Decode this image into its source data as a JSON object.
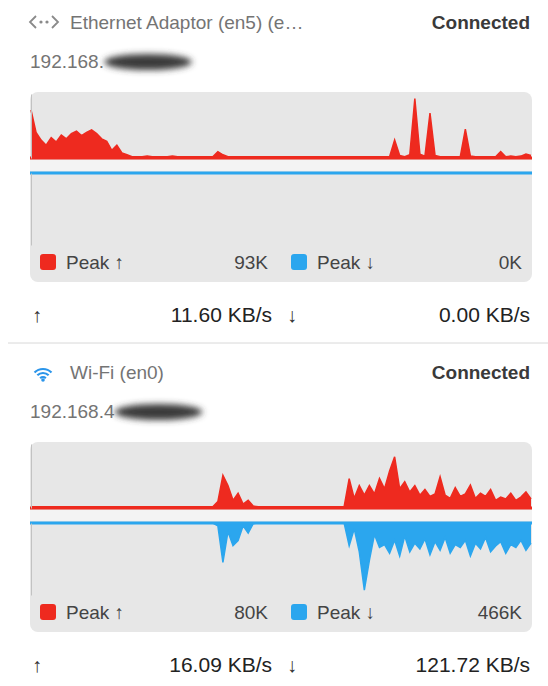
{
  "arrows": {
    "up": "↑",
    "down": "↓"
  },
  "panels": [
    {
      "name": "Ethernet Adaptor (en5) (e…",
      "status": "Connected",
      "ip": "192.168.",
      "peak_up": "93K",
      "peak_down": "0K",
      "rate_up": "11.60 KB/s",
      "rate_down": "0.00 KB/s"
    },
    {
      "name": "Wi-Fi (en0)",
      "status": "Connected",
      "ip": "192.168.4",
      "peak_up": "80K",
      "peak_down": "466K",
      "rate_up": "16.09 KB/s",
      "rate_down": "121.72 KB/s"
    }
  ],
  "chart_data": [
    {
      "type": "area",
      "categories": [
        null,
        null,
        null,
        null,
        null,
        null,
        null,
        null,
        null,
        null,
        null,
        null,
        null,
        null,
        null,
        null,
        null,
        null,
        null,
        null,
        null,
        null,
        null,
        null,
        null,
        null,
        null,
        null,
        null,
        null,
        null,
        null,
        null,
        null,
        null,
        null,
        null,
        null,
        null,
        null,
        null,
        null,
        null,
        null,
        null,
        null,
        null,
        null,
        null,
        null,
        null,
        null,
        null,
        null,
        null,
        null,
        null,
        null,
        null,
        null,
        null,
        null,
        null,
        null,
        null,
        null,
        null,
        null,
        null,
        null,
        null,
        null,
        null,
        null,
        null,
        null,
        null,
        null,
        null,
        null,
        null,
        null,
        null,
        null,
        null,
        null,
        null,
        null,
        null,
        null,
        null,
        null,
        null,
        null,
        null,
        null,
        null,
        null,
        null,
        null
      ],
      "series": [
        {
          "name": "Peak ↑",
          "color": "#ee2a1f",
          "values": [
            75,
            40,
            28,
            20,
            32,
            25,
            36,
            30,
            38,
            42,
            35,
            40,
            44,
            38,
            30,
            26,
            12,
            20,
            8,
            5,
            2,
            2,
            2,
            3,
            2,
            2,
            2,
            2,
            3,
            2,
            2,
            2,
            2,
            2,
            2,
            2,
            2,
            10,
            5,
            2,
            2,
            2,
            2,
            2,
            2,
            2,
            2,
            2,
            2,
            2,
            2,
            2,
            2,
            2,
            2,
            2,
            2,
            2,
            2,
            2,
            2,
            2,
            2,
            2,
            2,
            2,
            2,
            2,
            2,
            2,
            2,
            2,
            28,
            4,
            2,
            5,
            93,
            6,
            3,
            70,
            4,
            2,
            2,
            2,
            2,
            2,
            45,
            3,
            2,
            2,
            2,
            2,
            2,
            10,
            2,
            3,
            2,
            3,
            6,
            4
          ]
        },
        {
          "name": "Peak ↓",
          "color": "#2ba6ee",
          "axis": "y2",
          "values": [
            0,
            0,
            0,
            0,
            0,
            0,
            0,
            0,
            0,
            0,
            0,
            0,
            0,
            0,
            0,
            0,
            0,
            0,
            0,
            0,
            0,
            0,
            0,
            0,
            0,
            0,
            0,
            0,
            0,
            0,
            0,
            0,
            0,
            0,
            0,
            0,
            0,
            0,
            0,
            0,
            0,
            0,
            0,
            0,
            0,
            0,
            0,
            0,
            0,
            0,
            0,
            0,
            0,
            0,
            0,
            0,
            0,
            0,
            0,
            0,
            0,
            0,
            0,
            0,
            0,
            0,
            0,
            0,
            0,
            0,
            0,
            0,
            0,
            0,
            0,
            0,
            0,
            0,
            0,
            0,
            0,
            0,
            0,
            0,
            0,
            0,
            0,
            0,
            0,
            0,
            0,
            0,
            0,
            0,
            0,
            0,
            0,
            0,
            0,
            0
          ]
        }
      ],
      "ylim": [
        0,
        100
      ],
      "y2lim": [
        0,
        500
      ],
      "tick_labels": false,
      "legend": "bottom"
    },
    {
      "type": "area",
      "categories": [
        null,
        null,
        null,
        null,
        null,
        null,
        null,
        null,
        null,
        null,
        null,
        null,
        null,
        null,
        null,
        null,
        null,
        null,
        null,
        null,
        null,
        null,
        null,
        null,
        null,
        null,
        null,
        null,
        null,
        null,
        null,
        null,
        null,
        null,
        null,
        null,
        null,
        null,
        null,
        null,
        null,
        null,
        null,
        null,
        null,
        null,
        null,
        null,
        null,
        null,
        null,
        null,
        null,
        null,
        null,
        null,
        null,
        null,
        null,
        null,
        null,
        null,
        null,
        null,
        null,
        null,
        null,
        null,
        null,
        null,
        null,
        null,
        null,
        null,
        null,
        null,
        null,
        null,
        null,
        null,
        null,
        null,
        null,
        null,
        null,
        null,
        null,
        null,
        null,
        null,
        null,
        null,
        null,
        null,
        null,
        null,
        null,
        null,
        null,
        null
      ],
      "series": [
        {
          "name": "Peak ↑",
          "color": "#ee2a1f",
          "values": [
            2,
            2,
            2,
            2,
            2,
            2,
            2,
            2,
            2,
            2,
            2,
            2,
            2,
            2,
            2,
            2,
            2,
            2,
            2,
            2,
            2,
            2,
            2,
            2,
            2,
            2,
            2,
            2,
            2,
            2,
            2,
            2,
            2,
            2,
            2,
            2,
            2,
            10,
            51,
            35,
            12,
            23,
            6,
            12,
            3,
            2,
            2,
            2,
            2,
            2,
            2,
            2,
            2,
            2,
            2,
            2,
            2,
            2,
            2,
            2,
            2,
            2,
            2,
            46,
            15,
            35,
            20,
            35,
            22,
            46,
            30,
            58,
            80,
            30,
            41,
            25,
            35,
            20,
            29,
            18,
            22,
            49,
            20,
            15,
            32,
            18,
            22,
            36,
            15,
            23,
            18,
            29,
            12,
            17,
            14,
            23,
            12,
            17,
            25,
            14
          ]
        },
        {
          "name": "Peak ↓",
          "color": "#2ba6ee",
          "axis": "y2",
          "values": [
            0,
            0,
            0,
            0,
            0,
            0,
            0,
            0,
            0,
            0,
            0,
            0,
            0,
            0,
            0,
            0,
            0,
            0,
            0,
            0,
            0,
            0,
            0,
            0,
            0,
            0,
            0,
            0,
            0,
            0,
            0,
            0,
            0,
            0,
            0,
            0,
            0,
            20,
            274,
            60,
            158,
            123,
            20,
            70,
            5,
            0,
            0,
            0,
            0,
            0,
            0,
            0,
            0,
            0,
            0,
            0,
            0,
            0,
            0,
            0,
            0,
            0,
            0,
            158,
            40,
            200,
            466,
            260,
            80,
            170,
            150,
            210,
            120,
            230,
            90,
            200,
            140,
            180,
            110,
            220,
            130,
            190,
            100,
            210,
            150,
            170,
            120,
            230,
            140,
            180,
            100,
            200,
            160,
            130,
            210,
            150,
            170,
            120,
            190,
            140
          ]
        }
      ],
      "ylim": [
        0,
        100
      ],
      "y2lim": [
        0,
        500
      ],
      "tick_labels": false,
      "legend": "bottom"
    }
  ]
}
